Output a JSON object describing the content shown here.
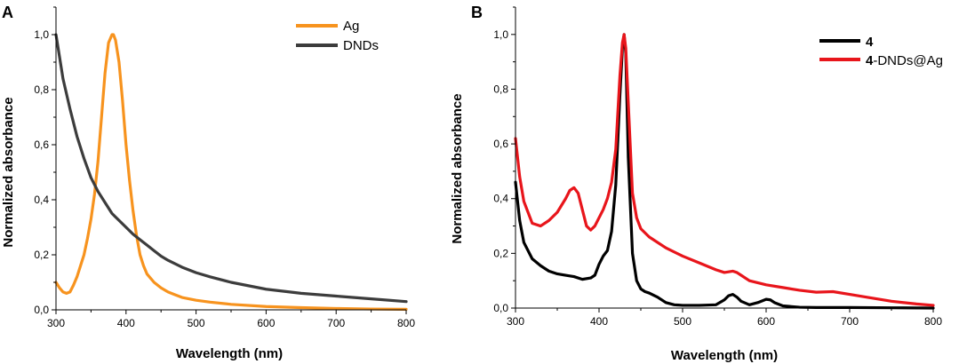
{
  "chart_data": [
    {
      "panel_label": "A",
      "type": "line",
      "xlabel": "Wavelength (nm)",
      "ylabel": "Normalized absorbance",
      "xlim": [
        300,
        800
      ],
      "ylim": [
        0,
        1.1
      ],
      "xticks": [
        300,
        400,
        500,
        600,
        700,
        800
      ],
      "xtick_labels": [
        "300",
        "400",
        "500",
        "600",
        "700",
        "800"
      ],
      "yticks": [
        0,
        0.2,
        0.4,
        0.6,
        0.8,
        1.0
      ],
      "ytick_labels": [
        "0,0",
        "0,2",
        "0,4",
        "0,6",
        "0,8",
        "1,0"
      ],
      "legend_position": "top-right",
      "series": [
        {
          "name": "Ag",
          "color": "#F7931E",
          "x": [
            300,
            305,
            310,
            315,
            320,
            325,
            330,
            335,
            340,
            345,
            350,
            355,
            360,
            365,
            370,
            375,
            380,
            382,
            385,
            390,
            395,
            400,
            405,
            410,
            415,
            420,
            425,
            430,
            440,
            450,
            460,
            470,
            480,
            500,
            520,
            550,
            600,
            650,
            700,
            750,
            800
          ],
          "y": [
            0.1,
            0.08,
            0.065,
            0.06,
            0.065,
            0.09,
            0.12,
            0.16,
            0.2,
            0.26,
            0.33,
            0.42,
            0.54,
            0.7,
            0.86,
            0.97,
            1.0,
            1.0,
            0.98,
            0.9,
            0.76,
            0.6,
            0.47,
            0.36,
            0.27,
            0.2,
            0.16,
            0.13,
            0.1,
            0.08,
            0.065,
            0.055,
            0.045,
            0.035,
            0.028,
            0.02,
            0.012,
            0.008,
            0.005,
            0.003,
            0.002
          ]
        },
        {
          "name": "DNDs",
          "color": "#3C3C3C",
          "x": [
            300,
            305,
            310,
            320,
            330,
            340,
            350,
            360,
            370,
            380,
            390,
            400,
            410,
            420,
            430,
            440,
            450,
            460,
            480,
            500,
            520,
            550,
            600,
            650,
            700,
            750,
            800
          ],
          "y": [
            1.0,
            0.92,
            0.84,
            0.73,
            0.63,
            0.55,
            0.48,
            0.43,
            0.39,
            0.35,
            0.325,
            0.3,
            0.275,
            0.255,
            0.235,
            0.215,
            0.195,
            0.18,
            0.155,
            0.135,
            0.12,
            0.1,
            0.075,
            0.06,
            0.05,
            0.04,
            0.03
          ]
        }
      ]
    },
    {
      "panel_label": "B",
      "type": "line",
      "xlabel": "Wavelength (nm)",
      "ylabel": "Normalized absorbance",
      "xlim": [
        300,
        800
      ],
      "ylim": [
        0,
        1.1
      ],
      "xticks": [
        300,
        400,
        500,
        600,
        700,
        800
      ],
      "xtick_labels": [
        "300",
        "400",
        "500",
        "600",
        "700",
        "800"
      ],
      "yticks": [
        0,
        0.2,
        0.4,
        0.6,
        0.8,
        1.0
      ],
      "ytick_labels": [
        "0,0",
        "0,2",
        "0,4",
        "0,6",
        "0,8",
        "1,0"
      ],
      "legend_position": "top-right",
      "series": [
        {
          "name": "4",
          "name_bold": "4",
          "name_rest": "",
          "color": "#000000",
          "x": [
            300,
            305,
            310,
            320,
            330,
            340,
            350,
            360,
            370,
            380,
            390,
            395,
            400,
            405,
            410,
            415,
            420,
            425,
            428,
            430,
            432,
            435,
            440,
            445,
            450,
            455,
            460,
            470,
            480,
            490,
            500,
            520,
            540,
            550,
            555,
            560,
            565,
            570,
            580,
            590,
            600,
            605,
            610,
            620,
            640,
            660,
            700,
            750,
            800
          ],
          "y": [
            0.46,
            0.32,
            0.24,
            0.18,
            0.155,
            0.135,
            0.125,
            0.12,
            0.115,
            0.105,
            0.11,
            0.12,
            0.16,
            0.19,
            0.21,
            0.28,
            0.45,
            0.78,
            0.95,
            1.0,
            0.93,
            0.55,
            0.2,
            0.1,
            0.07,
            0.06,
            0.055,
            0.04,
            0.02,
            0.012,
            0.01,
            0.01,
            0.012,
            0.03,
            0.045,
            0.05,
            0.04,
            0.025,
            0.012,
            0.02,
            0.032,
            0.03,
            0.02,
            0.008,
            0.003,
            0.002,
            0.002,
            0.001,
            0.0
          ]
        },
        {
          "name": "4-DNDs@Ag",
          "name_bold": "4",
          "name_rest": "-DNDs@Ag",
          "color": "#E8151B",
          "x": [
            300,
            305,
            310,
            320,
            330,
            340,
            350,
            360,
            365,
            370,
            375,
            380,
            385,
            390,
            395,
            400,
            405,
            410,
            415,
            420,
            425,
            428,
            430,
            432,
            435,
            440,
            445,
            450,
            460,
            480,
            500,
            520,
            540,
            550,
            560,
            565,
            570,
            580,
            600,
            620,
            640,
            660,
            680,
            700,
            720,
            750,
            780,
            800
          ],
          "y": [
            0.62,
            0.48,
            0.39,
            0.31,
            0.3,
            0.32,
            0.35,
            0.4,
            0.43,
            0.44,
            0.42,
            0.36,
            0.3,
            0.285,
            0.3,
            0.33,
            0.36,
            0.4,
            0.46,
            0.58,
            0.85,
            0.97,
            1.0,
            0.95,
            0.75,
            0.42,
            0.33,
            0.29,
            0.26,
            0.22,
            0.19,
            0.165,
            0.14,
            0.13,
            0.135,
            0.13,
            0.12,
            0.1,
            0.085,
            0.075,
            0.065,
            0.058,
            0.06,
            0.05,
            0.04,
            0.025,
            0.015,
            0.01
          ]
        }
      ]
    }
  ]
}
